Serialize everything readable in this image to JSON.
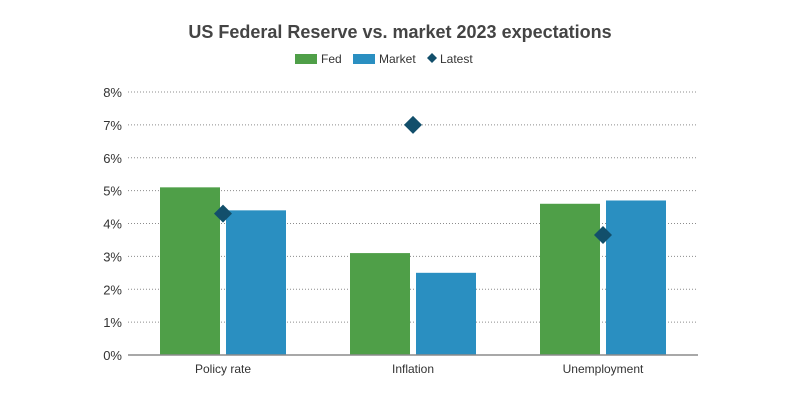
{
  "chart_data": {
    "type": "bar",
    "title": "US Federal Reserve vs. market 2023 expectations",
    "categories": [
      "Policy rate",
      "Inflation",
      "Unemployment"
    ],
    "series": [
      {
        "name": "Fed",
        "kind": "bar",
        "color": "#4f9f48",
        "values": [
          5.1,
          3.1,
          4.6
        ]
      },
      {
        "name": "Market",
        "kind": "bar",
        "color": "#2a8fc1",
        "values": [
          4.4,
          2.5,
          4.7
        ]
      },
      {
        "name": "Latest",
        "kind": "marker",
        "marker": "diamond",
        "color": "#124f6b",
        "values": [
          4.3,
          7.0,
          3.65
        ]
      }
    ],
    "ylim": [
      0,
      8
    ],
    "yticks": [
      0,
      1,
      2,
      3,
      4,
      5,
      6,
      7,
      8
    ],
    "ytick_labels": [
      "0%",
      "1%",
      "2%",
      "3%",
      "4%",
      "5%",
      "6%",
      "7%",
      "8%"
    ],
    "grid": true,
    "legend_position": "top-center",
    "xlabel": "",
    "ylabel": ""
  }
}
